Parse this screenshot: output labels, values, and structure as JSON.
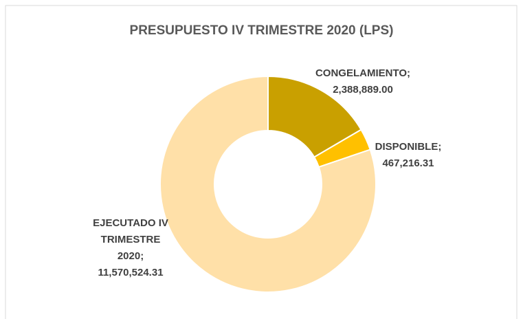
{
  "chart_data": {
    "type": "donut",
    "title": "PRESUPUESTO IV TRIMESTRE 2020 (LPS)",
    "categories": [
      "CONGELAMIENTO",
      "DISPONIBLE",
      "EJECUTADO IV TRIMESTRE 2020"
    ],
    "values": [
      2388889.0,
      467216.31,
      11570524.31
    ],
    "value_labels": [
      "2,388,889.00",
      "467,216.31",
      "11,570,524.31"
    ],
    "label_separator": ";",
    "colors": [
      "#c9a000",
      "#ffc000",
      "#ffe0a8"
    ]
  }
}
